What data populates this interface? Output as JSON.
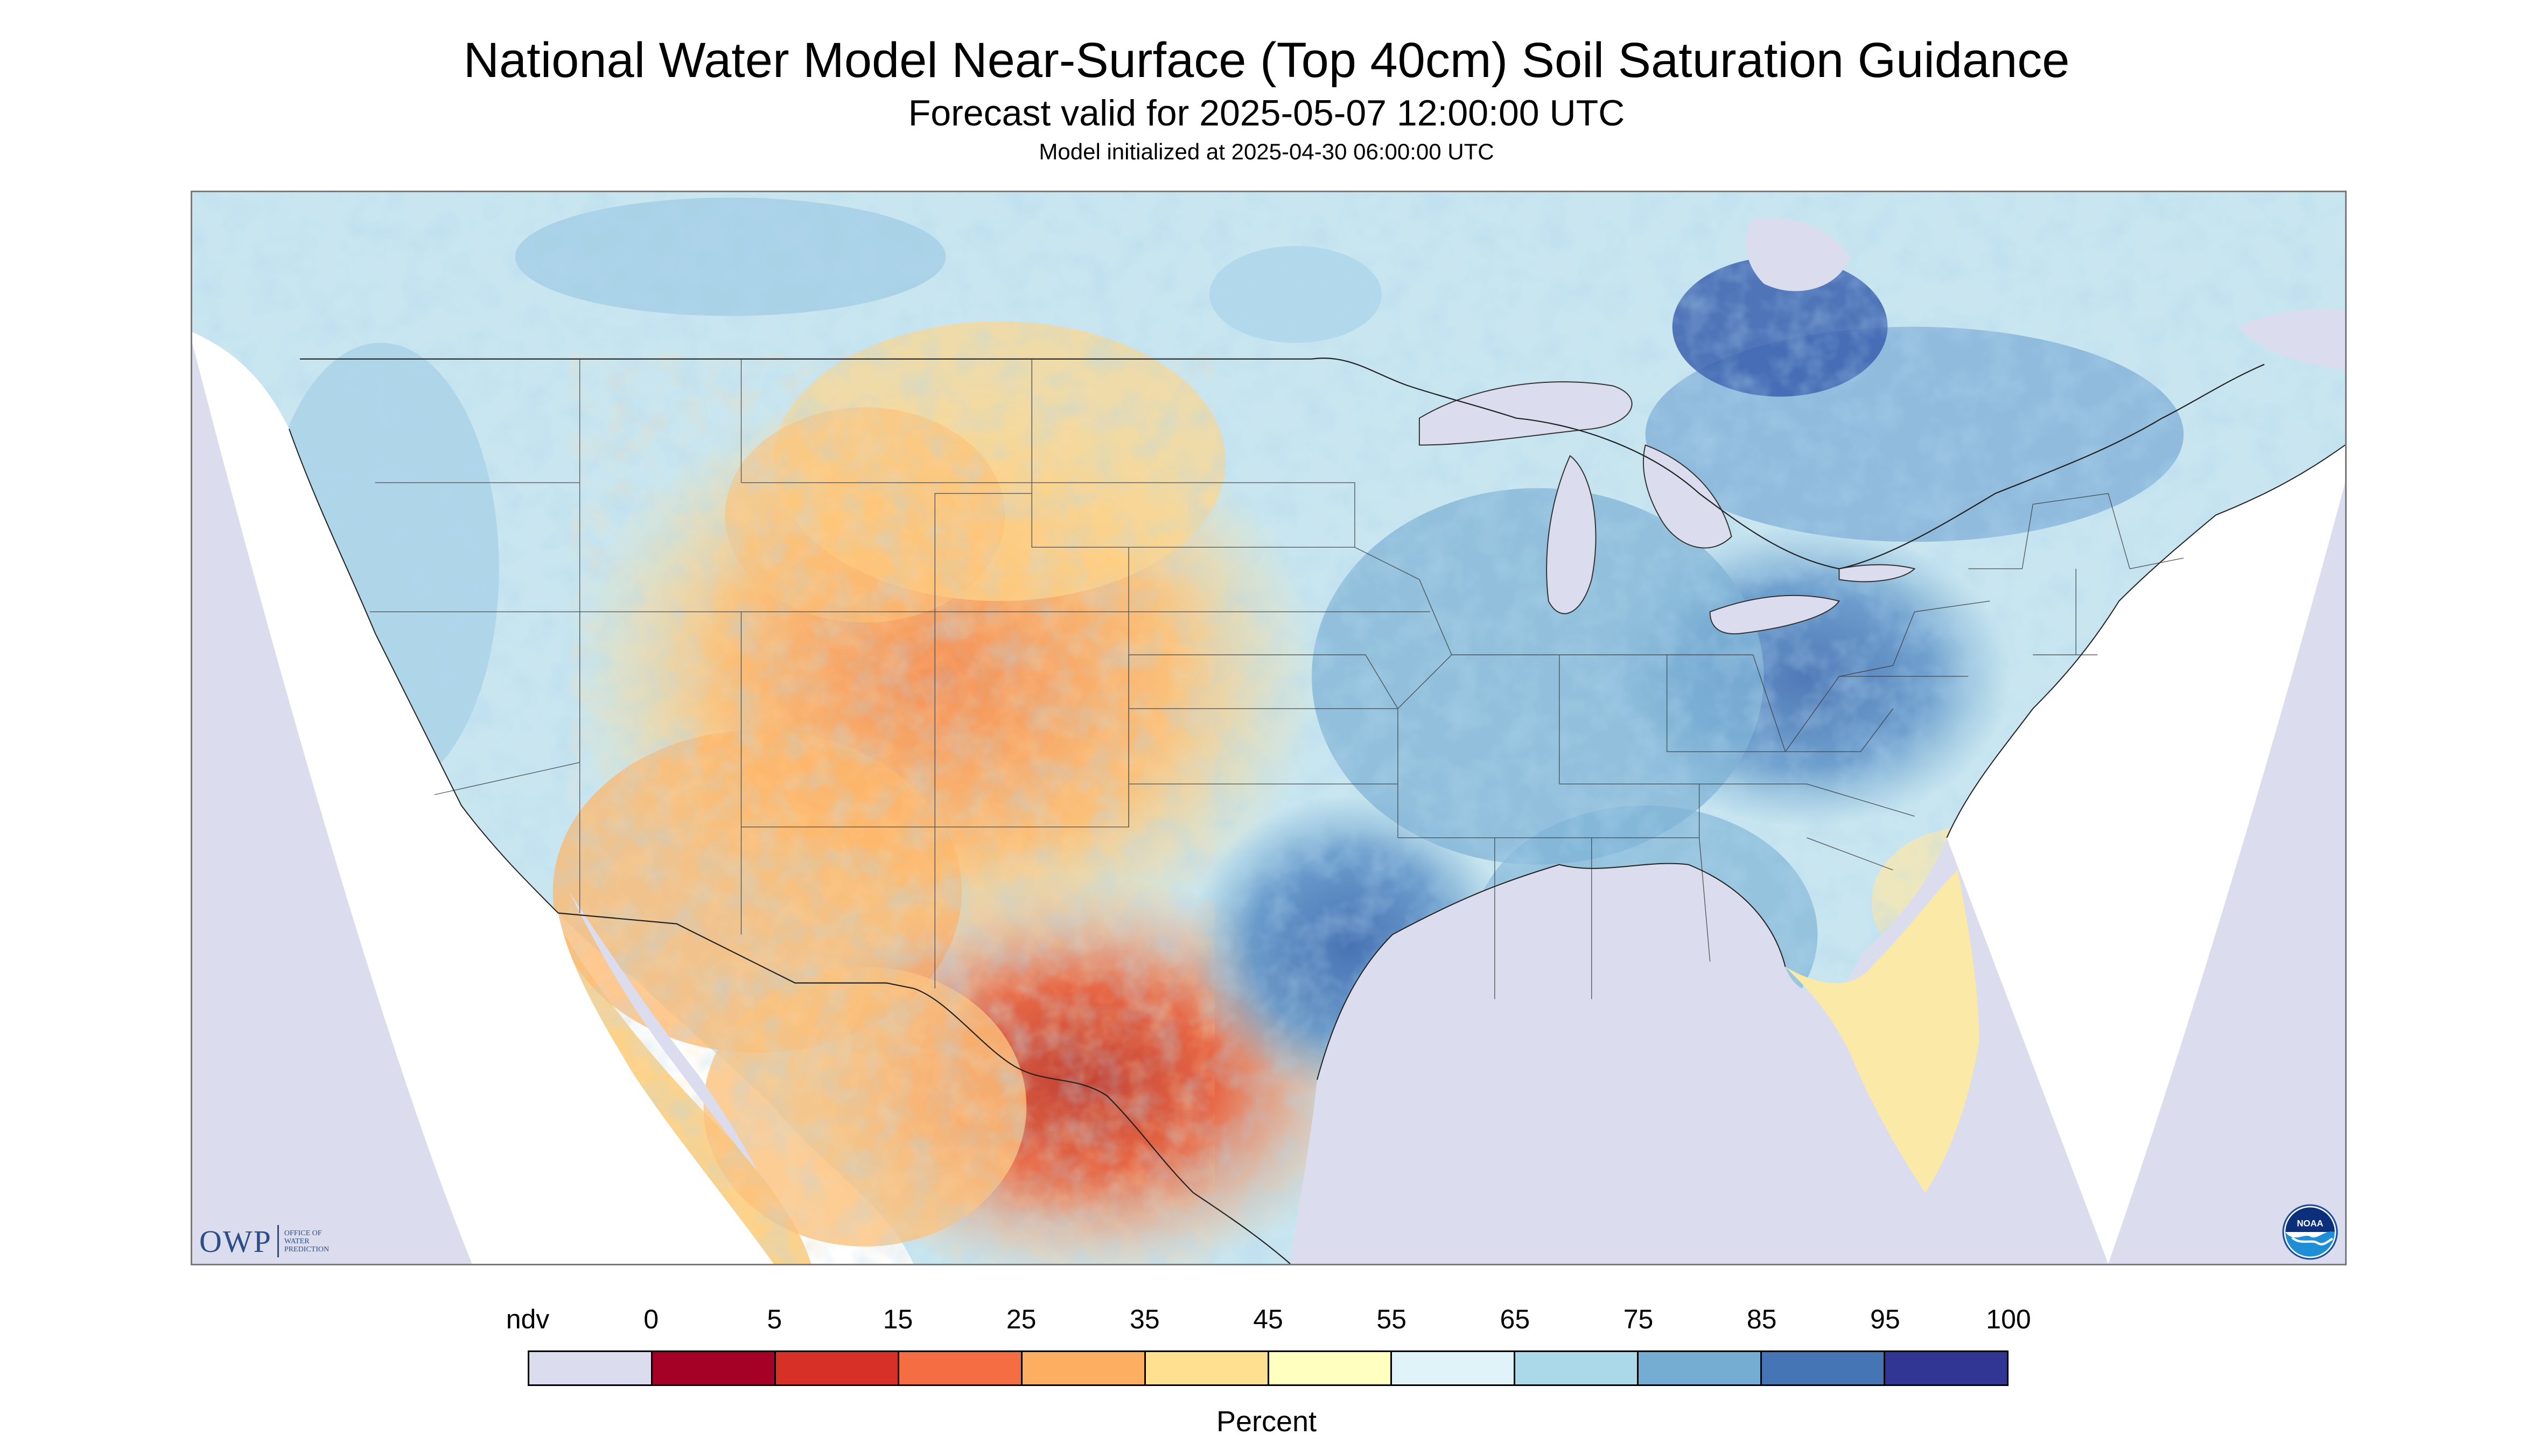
{
  "header": {
    "title": "National Water Model Near-Surface (Top 40cm) Soil Saturation Guidance",
    "subtitle": "Forecast valid for 2025-05-07 12:00:00 UTC",
    "initialized": "Model initialized at 2025-04-30 06:00:00 UTC"
  },
  "map": {
    "variable": "near-surface soil saturation",
    "region": "contiguous United States with parts of Canada and Mexico",
    "background_ndv_color": "#dcdcef",
    "ocean_color": "#ffffff",
    "lake_color": "#dcdcef",
    "border_color": "#333333"
  },
  "logos": {
    "owp_text": "OWP",
    "owp_sub": [
      "OFFICE OF",
      "WATER",
      "PREDICTION"
    ],
    "noaa_text": "NOAA"
  },
  "legend": {
    "labels": [
      "ndv",
      "0",
      "5",
      "15",
      "25",
      "35",
      "45",
      "55",
      "65",
      "75",
      "85",
      "95",
      "100"
    ],
    "colors": [
      "#dcdcef",
      "#a50026",
      "#d73027",
      "#f46d43",
      "#fdae61",
      "#fee090",
      "#ffffbf",
      "#e0f3f8",
      "#abd9e9",
      "#74add1",
      "#4575b4",
      "#313695"
    ],
    "units": "Percent"
  }
}
